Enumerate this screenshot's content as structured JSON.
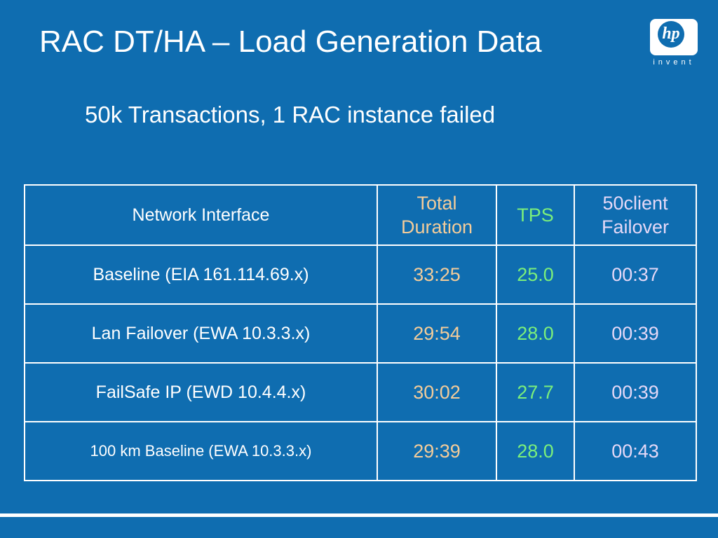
{
  "slide": {
    "title": "RAC DT/HA – Load Generation Data",
    "subtitle": "50k Transactions, 1 RAC instance failed"
  },
  "logo": {
    "mark": "hp",
    "tagline": "invent"
  },
  "colors": {
    "background": "#0f6db0",
    "duration_text": "#f3cc9a",
    "tps_text": "#7bef7b",
    "failover_text": "#e4d8f7"
  },
  "table": {
    "headers": {
      "network_interface": "Network Interface",
      "total_duration_line1": "Total",
      "total_duration_line2": "Duration",
      "tps": "TPS",
      "failover_line1": "50client",
      "failover_line2": "Failover"
    },
    "rows": [
      {
        "network_interface": "Baseline  (EIA  161.114.69.x)",
        "total_duration": "33:25",
        "tps": "25.0",
        "failover": "00:37"
      },
      {
        "network_interface": "Lan Failover (EWA 10.3.3.x)",
        "total_duration": "29:54",
        "tps": "28.0",
        "failover": "00:39"
      },
      {
        "network_interface": "FailSafe IP (EWD 10.4.4.x)",
        "total_duration": "30:02",
        "tps": "27.7",
        "failover": "00:39"
      },
      {
        "network_interface": "100 km Baseline (EWA 10.3.3.x)",
        "total_duration": "29:39",
        "tps": "28.0",
        "failover": "00:43"
      }
    ]
  }
}
